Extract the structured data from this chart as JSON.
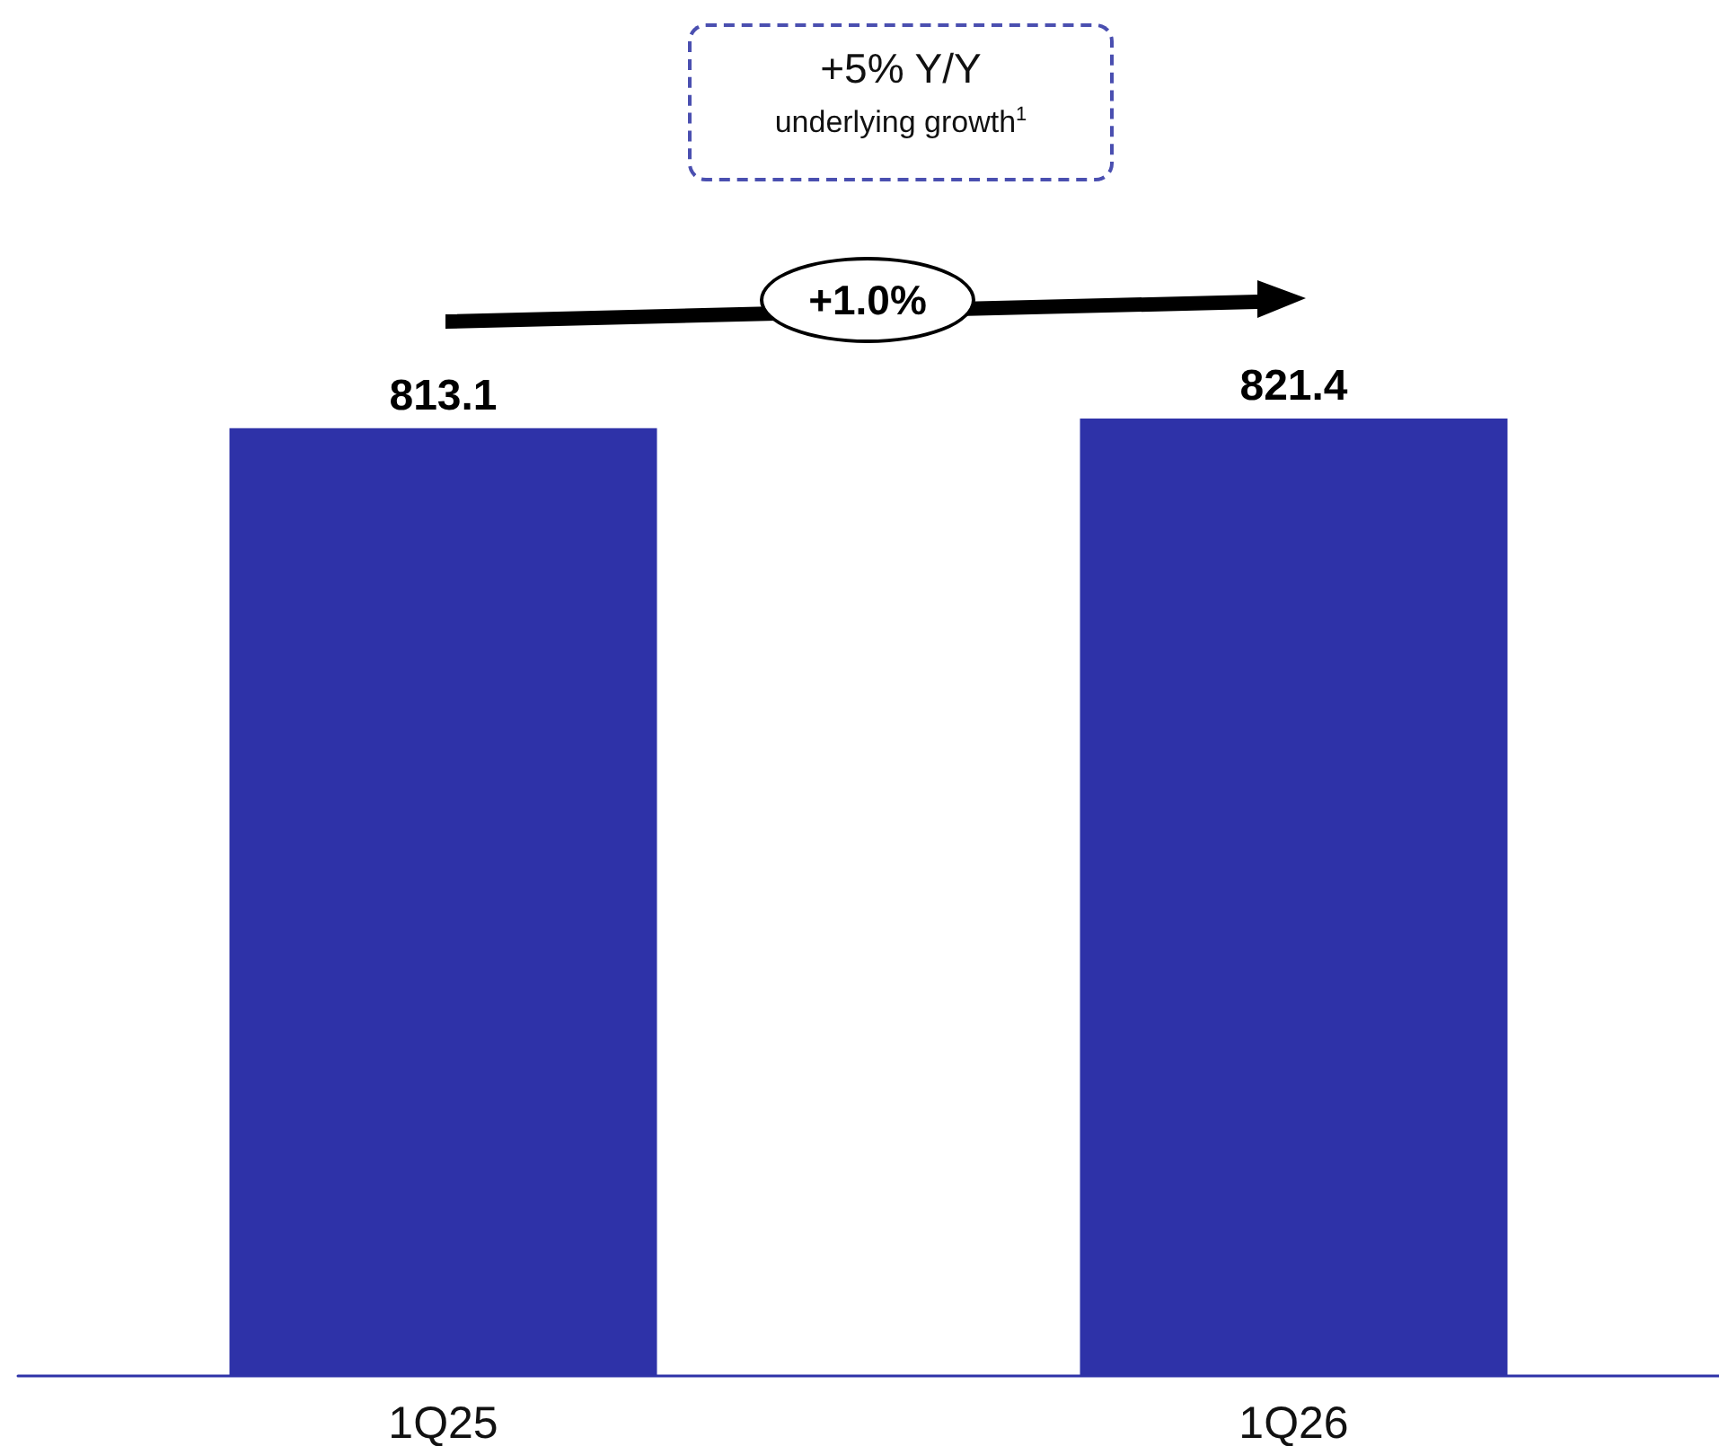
{
  "chart_data": {
    "type": "bar",
    "categories": [
      "1Q25",
      "1Q26"
    ],
    "values": [
      813.1,
      821.4
    ],
    "color": "#2e32a8",
    "data_labels": true,
    "annotations": [
      "+5% Y/Y",
      "underlying growth$^{1}$",
      "+1.0%"
    ]
  }
}
